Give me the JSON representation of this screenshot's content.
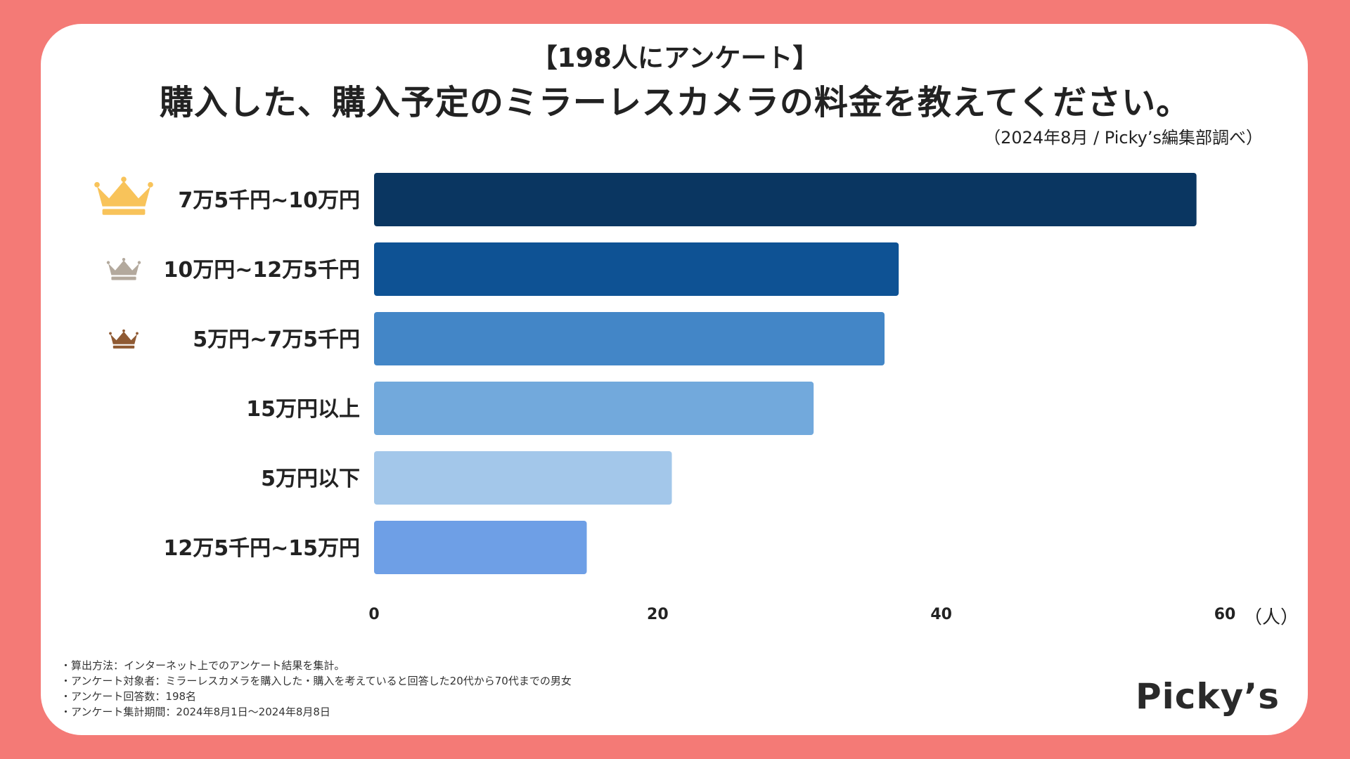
{
  "header": {
    "survey_label": "【198人にアンケート】",
    "question": "購入した、購入予定のミラーレスカメラの料金を教えてください。",
    "source": "（2024年8月 / Picky’s編集部調べ）"
  },
  "chart_data": {
    "type": "bar",
    "orientation": "horizontal",
    "title": "購入した、購入予定のミラーレスカメラの料金を教えてください。",
    "categories": [
      "7万5千円~10万円",
      "10万円~12万5千円",
      "5万円~7万5千円",
      "15万円以上",
      "5万円以下",
      "12万5千円~15万円"
    ],
    "values": [
      58,
      37,
      36,
      31,
      21,
      15
    ],
    "bar_colors": [
      "#0a3661",
      "#0e5294",
      "#4386c7",
      "#72a9dc",
      "#a3c7ea",
      "#6e9fe6"
    ],
    "rank_icons": [
      "gold-crown",
      "silver-crown",
      "bronze-crown",
      null,
      null,
      null
    ],
    "rank_colors": [
      "#f8c35a",
      "#b3a99d",
      "#8f5a33"
    ],
    "xlim": [
      0,
      60
    ],
    "xticks": [
      0,
      20,
      40,
      60
    ],
    "unit": "（人）",
    "grid": false
  },
  "notes": [
    "・算出方法：インターネット上でのアンケート結果を集計。",
    "・アンケート対象者：ミラーレスカメラを購入した・購入を考えていると回答した20代から70代までの男女",
    "・アンケート回答数：198名",
    "・アンケート集計期間：2024年8月1日〜2024年8月8日"
  ],
  "logo": "Picky’s"
}
